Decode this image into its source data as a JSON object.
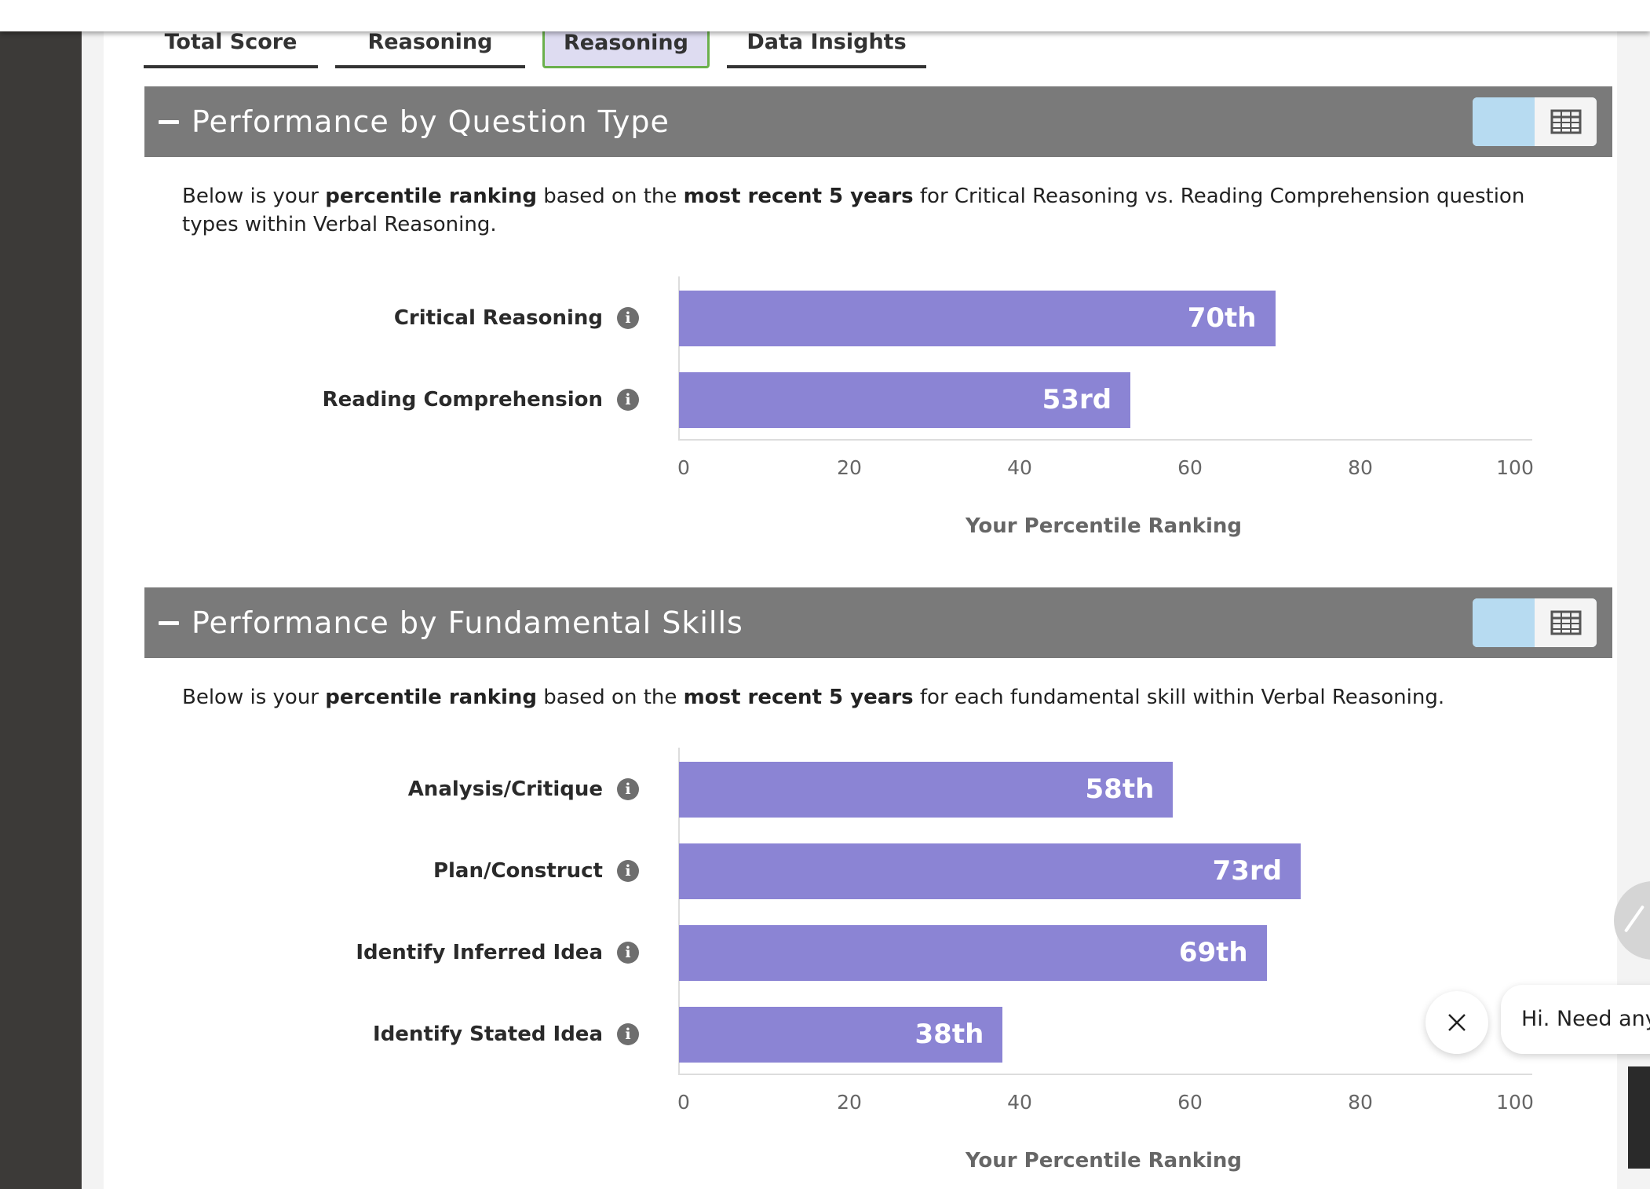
{
  "tabs": [
    {
      "label": "Total Score",
      "active": false
    },
    {
      "label": "Reasoning",
      "active": false
    },
    {
      "label": "Reasoning",
      "active": true
    },
    {
      "label": "Data Insights",
      "active": false
    }
  ],
  "sections": [
    {
      "title": "Performance by Question Type",
      "description": {
        "parts": [
          "Below is your ",
          "percentile ranking",
          " based on the ",
          "most recent 5 years",
          " for Critical Reasoning vs. Reading Comprehension question types within Verbal Reasoning."
        ]
      }
    },
    {
      "title": "Performance by Fundamental Skills",
      "description": {
        "parts": [
          "Below is your ",
          "percentile ranking",
          " based on the ",
          "most recent 5 years",
          " for each fundamental skill within Verbal Reasoning."
        ]
      }
    }
  ],
  "view_toggle": {
    "chart_icon": "bar-chart-icon",
    "table_icon": "table-icon",
    "selected": "chart"
  },
  "chart_data": [
    {
      "type": "bar",
      "orientation": "horizontal",
      "categories": [
        "Critical Reasoning",
        "Reading Comprehension"
      ],
      "values": [
        70,
        53
      ],
      "value_labels": [
        "70th",
        "53rd"
      ],
      "xlabel": "Your Percentile Ranking",
      "xlim": [
        0,
        100
      ],
      "xticks": [
        "0",
        "20",
        "40",
        "60",
        "80",
        "100"
      ],
      "bar_color": "#8b84d4",
      "grid": false
    },
    {
      "type": "bar",
      "orientation": "horizontal",
      "categories": [
        "Analysis/Critique",
        "Plan/Construct",
        "Identify Inferred Idea",
        "Identify Stated Idea"
      ],
      "values": [
        58,
        73,
        69,
        38
      ],
      "value_labels": [
        "58th",
        "73rd",
        "69th",
        "38th"
      ],
      "xlabel": "Your Percentile Ranking",
      "xlim": [
        0,
        100
      ],
      "xticks": [
        "0",
        "20",
        "40",
        "60",
        "80",
        "100"
      ],
      "bar_color": "#8b84d4",
      "grid": false
    }
  ],
  "chat": {
    "greeting": "Hi. Need any",
    "close_icon": "close-icon"
  },
  "colors": {
    "header_bg": "#7a7a7a",
    "bar": "#8b84d4",
    "toggle_active": "#b7dbf1",
    "active_tab_border": "#6bb04c",
    "active_tab_bg": "#dedcf1"
  }
}
